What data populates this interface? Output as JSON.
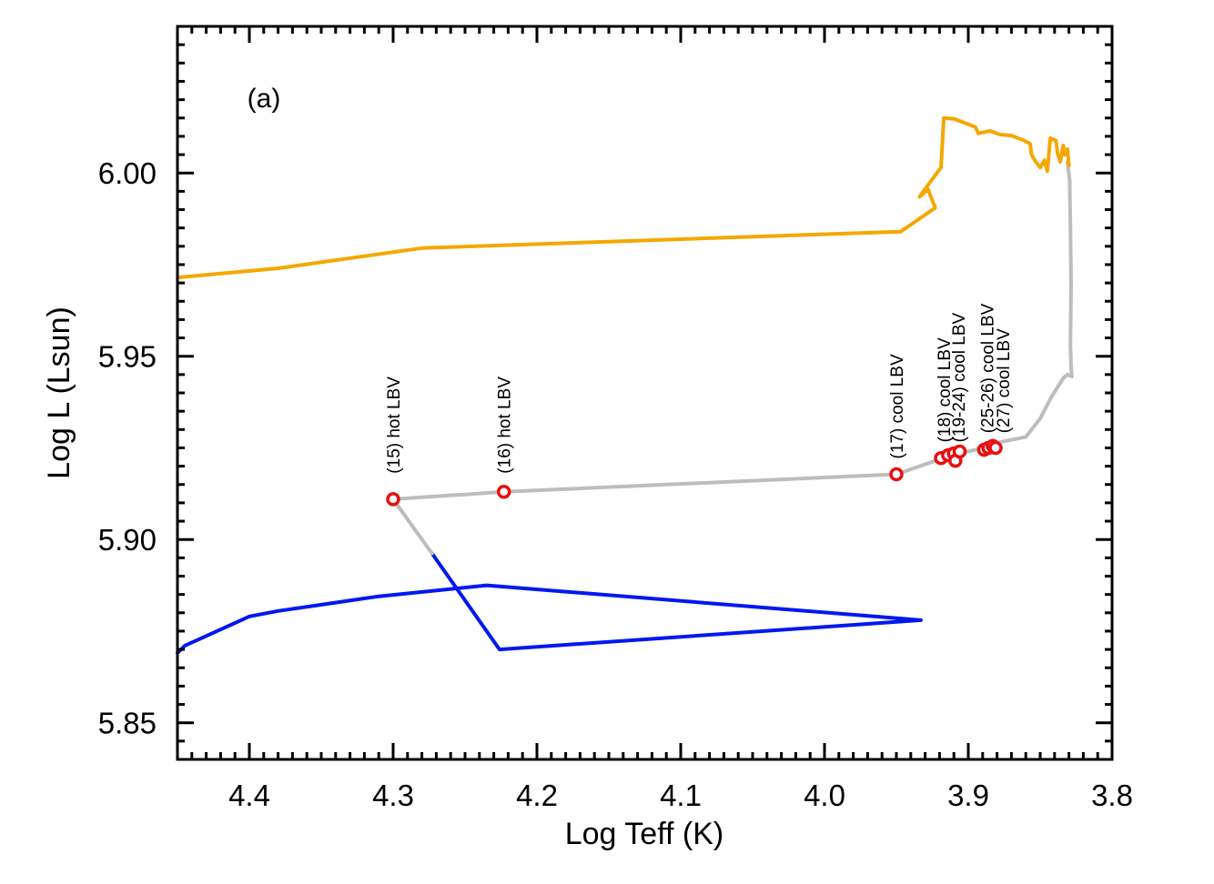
{
  "chart_data": {
    "type": "line",
    "panel_label": "(a)",
    "xlabel": "Log Teff (K)",
    "ylabel": "Log L (Lsun)",
    "xlim": [
      4.45,
      3.8
    ],
    "ylim": [
      5.84,
      6.04
    ],
    "x_reversed": true,
    "x_ticks": [
      4.4,
      4.3,
      4.2,
      4.1,
      4.0,
      3.9,
      3.8
    ],
    "x_tick_labels": [
      "4.4",
      "4.3",
      "4.2",
      "4.1",
      "4.0",
      "3.9",
      "3.8"
    ],
    "y_ticks": [
      5.85,
      5.9,
      5.95,
      6.0
    ],
    "y_tick_labels": [
      "5.85",
      "5.90",
      "5.95",
      "6.00"
    ],
    "grid": false,
    "legend": "none",
    "series": [
      {
        "color": "#0018f0",
        "x": [
          4.45,
          4.445,
          4.4,
          4.38,
          4.31,
          4.235,
          3.933,
          4.226,
          4.273
        ],
        "y": [
          5.869,
          5.871,
          5.879,
          5.8805,
          5.8845,
          5.8875,
          5.878,
          5.87,
          5.8962
        ]
      },
      {
        "color": "#bdbdbd",
        "x": [
          4.273,
          4.3,
          4.223,
          3.95,
          3.919,
          3.912,
          3.889,
          3.879,
          3.86,
          3.85,
          3.842,
          3.834,
          3.831,
          3.828,
          3.8285,
          3.829,
          3.8285,
          3.829,
          3.8295,
          3.831
        ],
        "y": [
          5.8962,
          5.911,
          5.913,
          5.9178,
          5.922,
          5.923,
          5.925,
          5.9265,
          5.928,
          5.933,
          5.939,
          5.944,
          5.945,
          5.9445,
          5.947,
          5.953,
          5.97,
          5.985,
          5.998,
          6.003
        ]
      },
      {
        "color": "#f5a700",
        "x": [
          4.45,
          4.38,
          4.28,
          3.947,
          3.923,
          3.928,
          3.934,
          3.919,
          3.917,
          3.91,
          3.895,
          3.893,
          3.885,
          3.878,
          3.87,
          3.862,
          3.857,
          3.856,
          3.853,
          3.85,
          3.847,
          3.845,
          3.843,
          3.839,
          3.838,
          3.836,
          3.834,
          3.833,
          3.831,
          3.83
        ],
        "y": [
          5.9715,
          5.974,
          5.9795,
          5.984,
          5.9905,
          5.9955,
          5.9935,
          6.0015,
          6.015,
          6.0148,
          6.0125,
          6.0108,
          6.0115,
          6.0105,
          6.0102,
          6.009,
          6.008,
          6.005,
          6.003,
          6.0015,
          6.0035,
          6.0005,
          6.0095,
          6.0088,
          6.0055,
          6.003,
          6.0075,
          6.005,
          6.0065,
          6.002
        ]
      }
    ],
    "points": {
      "color": "#e81010",
      "x": [
        4.3,
        4.223,
        3.95,
        3.919,
        3.914,
        3.91,
        3.909,
        3.906,
        3.889,
        3.886,
        3.883,
        3.881
      ],
      "y": [
        5.911,
        5.913,
        5.9178,
        5.9222,
        5.923,
        5.9235,
        5.9215,
        5.924,
        5.9245,
        5.925,
        5.9255,
        5.925
      ]
    },
    "annotations": [
      {
        "text": "(15) hot LBV",
        "x": 4.3,
        "y": 5.918
      },
      {
        "text": "(16) hot LBV",
        "x": 4.223,
        "y": 5.918
      },
      {
        "text": "(17) cool LBV",
        "x": 3.95,
        "y": 5.922
      },
      {
        "text": "(18) cool LBV",
        "x": 3.917,
        "y": 5.9265
      },
      {
        "text": "(19-24) cool LBV",
        "x": 3.907,
        "y": 5.9265
      },
      {
        "text": "(25-26) cool LBV",
        "x": 3.887,
        "y": 5.929
      },
      {
        "text": "(27) cool LBV",
        "x": 3.876,
        "y": 5.929
      }
    ]
  }
}
